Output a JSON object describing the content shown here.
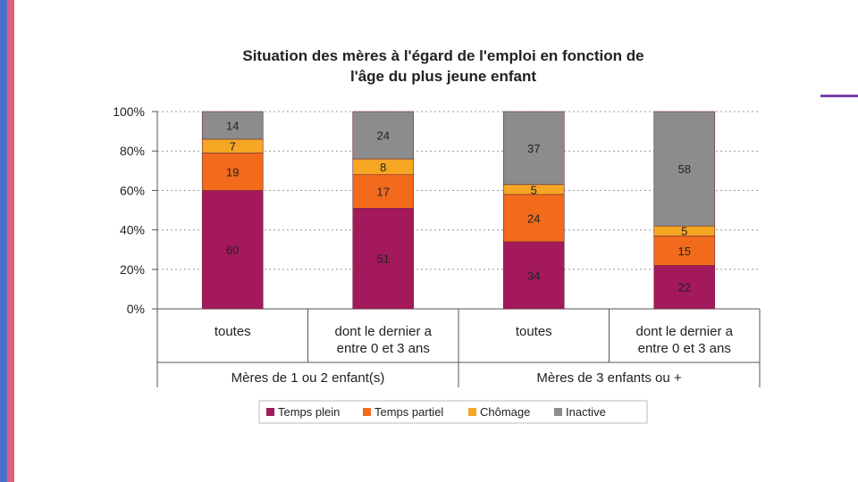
{
  "chart_data": {
    "type": "bar",
    "stacked": true,
    "title": [
      "Situation des mères à l'égard de l'emploi en fonction de",
      "l'âge du plus jeune enfant"
    ],
    "categories": [
      "toutes",
      "dont le dernier a entre 0 et 3 ans",
      "toutes",
      "dont le dernier a entre 0 et 3 ans"
    ],
    "category_lines": [
      [
        "toutes"
      ],
      [
        "dont le dernier a",
        "entre 0 et 3 ans"
      ],
      [
        "toutes"
      ],
      [
        "dont le dernier a",
        "entre 0 et 3 ans"
      ]
    ],
    "groups": [
      {
        "label": "Mères de 1 ou 2 enfant(s)",
        "categories": [
          0,
          1
        ]
      },
      {
        "label": "Mères de 3 enfants ou +",
        "categories": [
          2,
          3
        ]
      }
    ],
    "series": [
      {
        "name": "Temps plein",
        "color": "#a3195b",
        "values": [
          60,
          51,
          34,
          22
        ]
      },
      {
        "name": "Temps partiel",
        "color": "#f26a1b",
        "values": [
          19,
          17,
          24,
          15
        ]
      },
      {
        "name": "Chômage",
        "color": "#f6a623",
        "values": [
          7,
          8,
          5,
          5
        ]
      },
      {
        "name": "Inactive",
        "color": "#8c8c8c",
        "values": [
          14,
          24,
          37,
          58
        ]
      }
    ],
    "yticks": [
      "0%",
      "20%",
      "40%",
      "60%",
      "80%",
      "100%"
    ],
    "ylim": [
      0,
      100
    ],
    "grid": true,
    "legend": "bottom"
  }
}
